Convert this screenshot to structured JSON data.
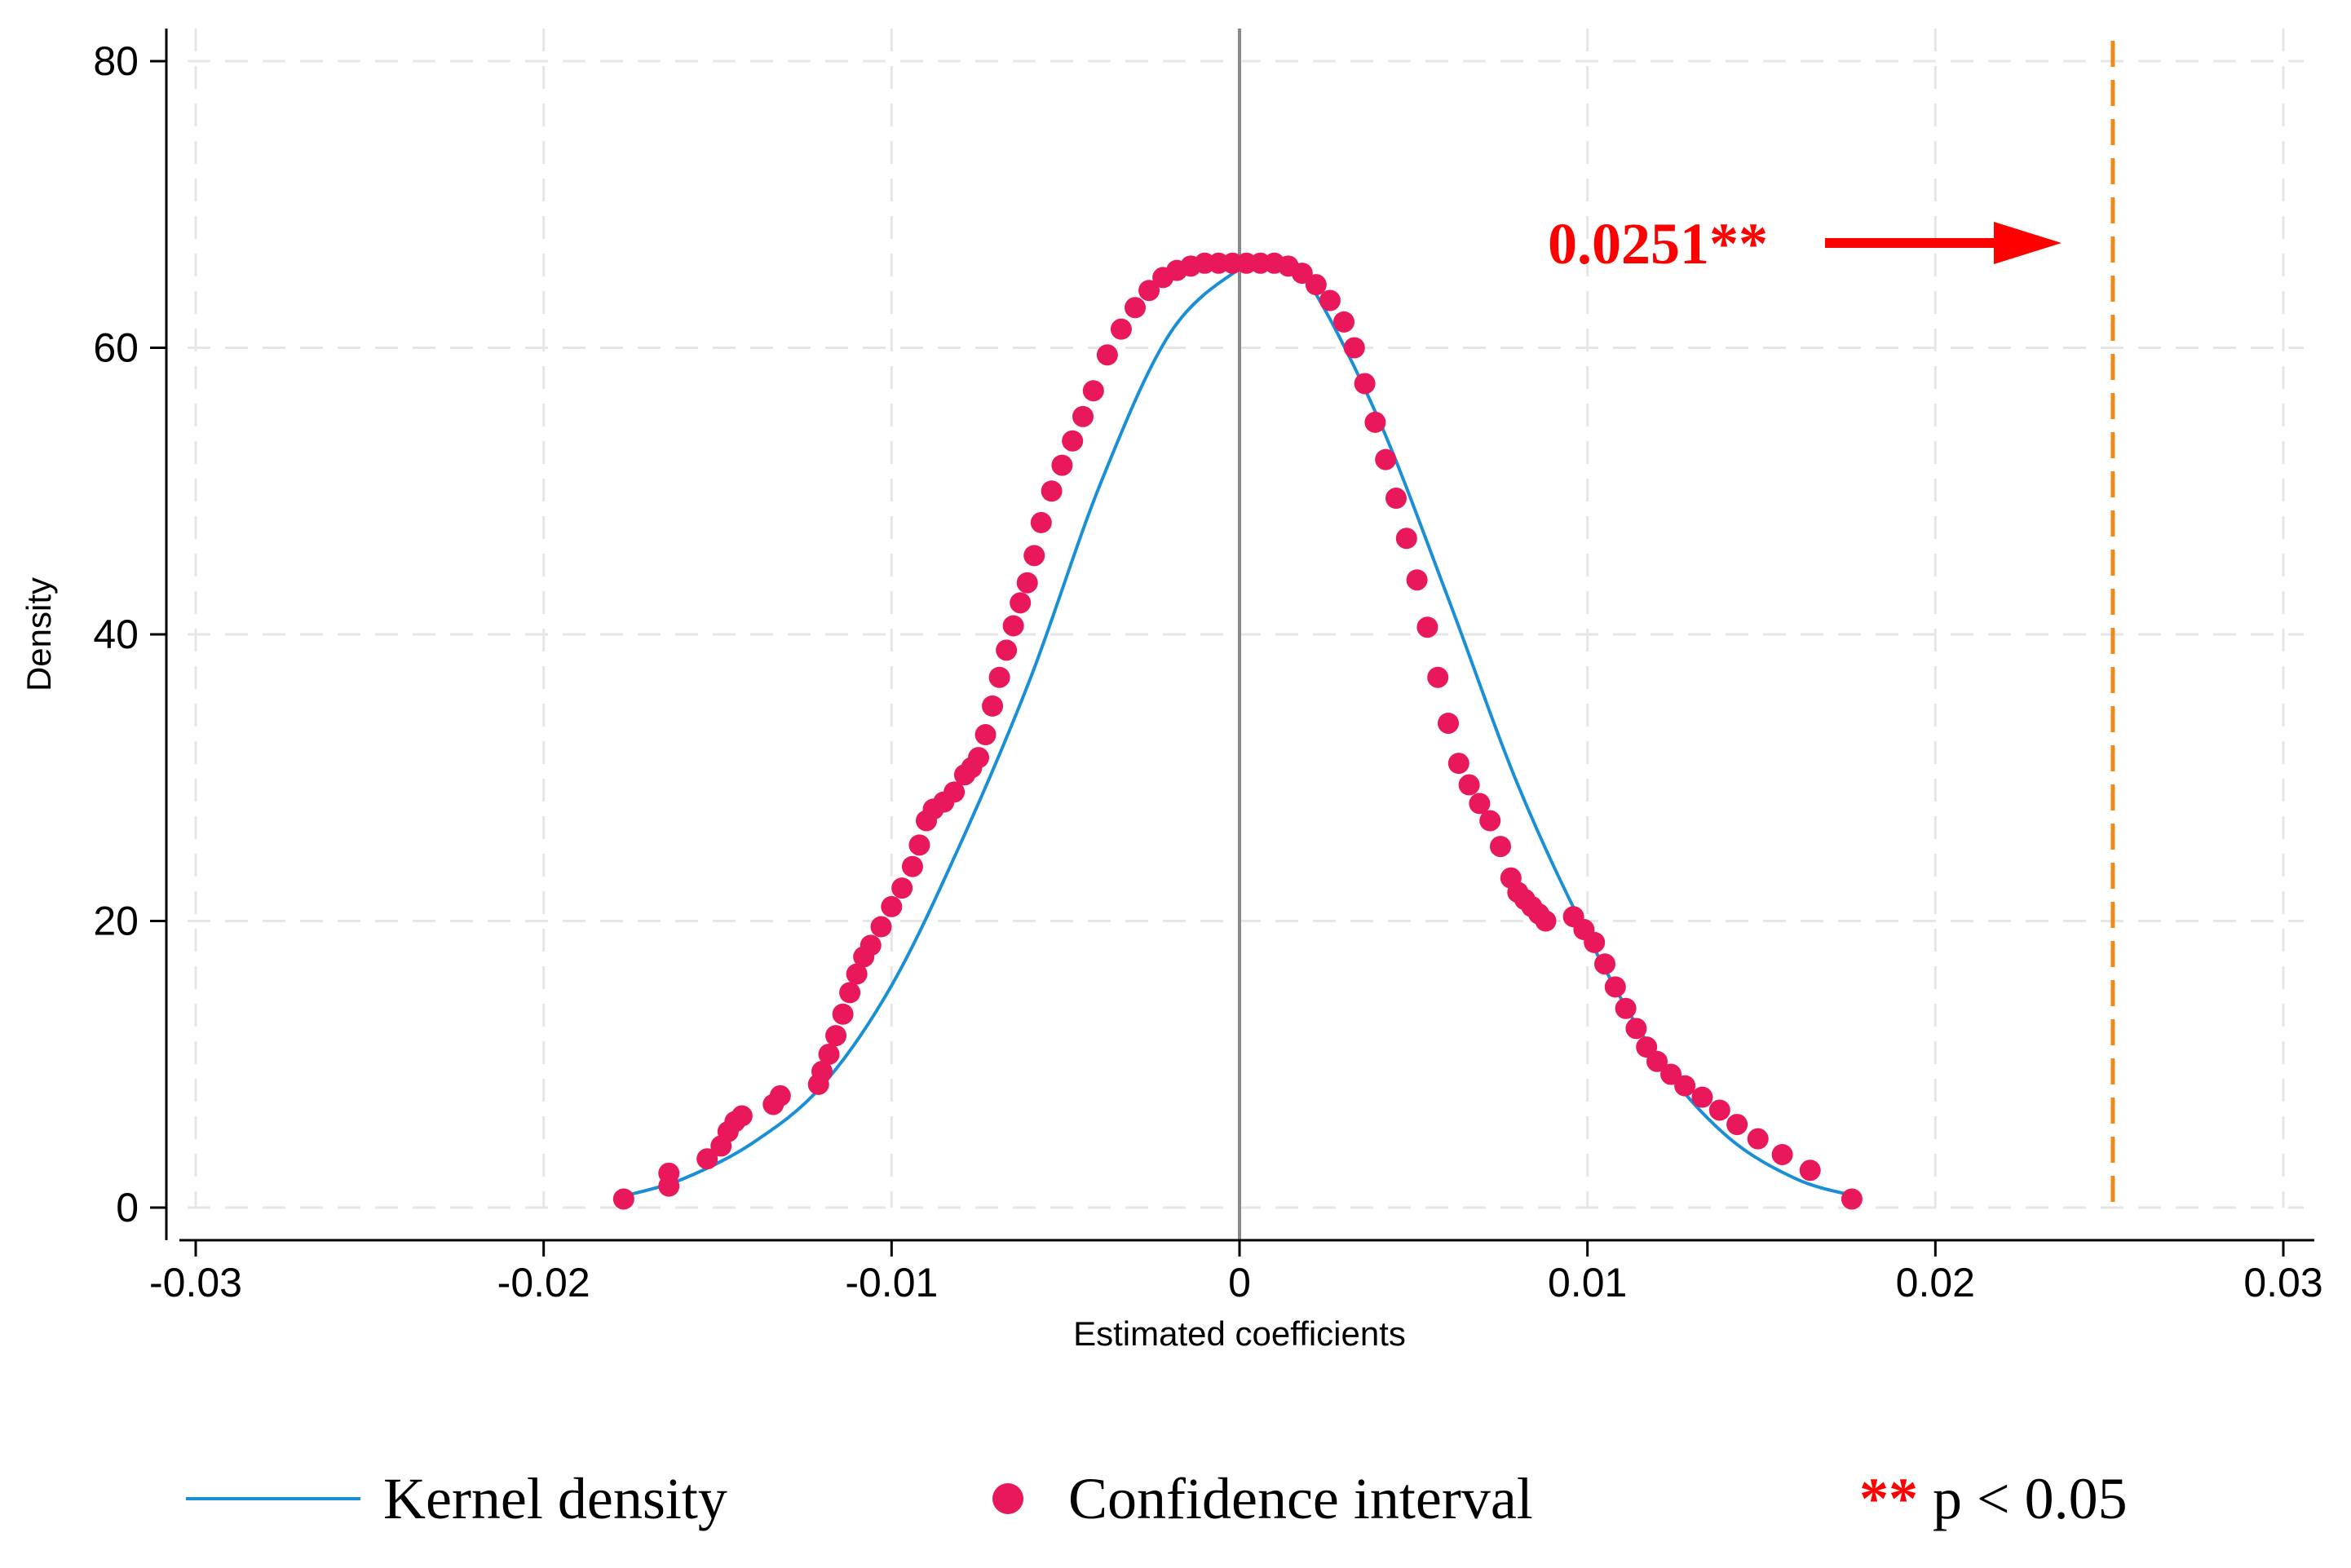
{
  "chart_data": {
    "type": "scatter",
    "title": "",
    "xlabel": "Estimated coefficients",
    "ylabel": "Density",
    "xlim": [
      -0.03,
      0.03
    ],
    "ylim": [
      0,
      80
    ],
    "xticks": [
      -0.03,
      -0.02,
      -0.01,
      0,
      0.01,
      0.02,
      0.03
    ],
    "xtick_labels": [
      "-0.03",
      "-0.02",
      "-0.01",
      "0",
      "0.01",
      "0.02",
      "0.03"
    ],
    "yticks": [
      0,
      20,
      40,
      60,
      80
    ],
    "ytick_labels": [
      "0",
      "20",
      "40",
      "60",
      "80"
    ],
    "grid": true,
    "reference_lines": {
      "zero_line_x": 0,
      "observed_coefficient_x": 0.0251
    },
    "annotation": {
      "text": "0.0251**",
      "color": "#ff0000",
      "points_to": 0.0251
    },
    "kernel_density": {
      "name": "Kernel density",
      "color": "#1a8fd6",
      "x": [
        -0.0177,
        -0.016,
        -0.014,
        -0.012,
        -0.01,
        -0.008,
        -0.006,
        -0.004,
        -0.002,
        0.0,
        0.001,
        0.002,
        0.004,
        0.006,
        0.008,
        0.01,
        0.012,
        0.014,
        0.016,
        0.0177
      ],
      "y": [
        0.8,
        2.0,
        4.5,
        8.5,
        15.5,
        25.5,
        37.0,
        50.5,
        61.0,
        65.5,
        66.0,
        64.5,
        55.0,
        42.5,
        29.5,
        19.0,
        10.5,
        5.0,
        2.0,
        0.8
      ]
    },
    "confidence_interval": {
      "name": "Confidence interval",
      "color": "#e8185a",
      "x": [
        -0.0177,
        -0.0164,
        -0.0164,
        -0.0153,
        -0.0149,
        -0.0147,
        -0.0145,
        -0.0143,
        -0.0134,
        -0.0132,
        -0.0121,
        -0.012,
        -0.0118,
        -0.0116,
        -0.0114,
        -0.0112,
        -0.011,
        -0.0108,
        -0.0106,
        -0.0103,
        -0.01,
        -0.0097,
        -0.0094,
        -0.0092,
        -0.009,
        -0.0088,
        -0.0085,
        -0.0082,
        -0.0079,
        -0.0077,
        -0.0075,
        -0.0073,
        -0.0071,
        -0.0069,
        -0.0067,
        -0.0065,
        -0.0063,
        -0.0061,
        -0.0059,
        -0.0057,
        -0.0054,
        -0.0051,
        -0.0048,
        -0.0045,
        -0.0042,
        -0.0038,
        -0.0034,
        -0.003,
        -0.0026,
        -0.0022,
        -0.0018,
        -0.0014,
        -0.001,
        -0.0006,
        -0.0002,
        0.0002,
        0.0006,
        0.001,
        0.0014,
        0.0018,
        0.0022,
        0.0026,
        0.003,
        0.0033,
        0.0036,
        0.0039,
        0.0042,
        0.0045,
        0.0048,
        0.0051,
        0.0054,
        0.0057,
        0.006,
        0.0063,
        0.0066,
        0.0069,
        0.0072,
        0.0075,
        0.0078,
        0.008,
        0.0082,
        0.0084,
        0.0086,
        0.0088,
        0.0096,
        0.0099,
        0.0102,
        0.0105,
        0.0108,
        0.0111,
        0.0114,
        0.0117,
        0.012,
        0.0124,
        0.0128,
        0.0133,
        0.0138,
        0.0143,
        0.0149,
        0.0156,
        0.0164,
        0.0176
      ],
      "y": [
        0.6,
        1.5,
        2.4,
        3.4,
        4.3,
        5.3,
        6.0,
        6.4,
        7.2,
        7.8,
        8.6,
        9.5,
        10.7,
        12.0,
        13.5,
        15.0,
        16.3,
        17.5,
        18.3,
        19.6,
        21.0,
        22.3,
        23.8,
        25.3,
        27.0,
        27.8,
        28.3,
        29.0,
        30.2,
        30.7,
        31.4,
        33.0,
        35.0,
        37.0,
        38.9,
        40.6,
        42.2,
        43.6,
        45.5,
        47.8,
        50.0,
        51.8,
        53.5,
        55.2,
        57.0,
        59.5,
        61.3,
        62.8,
        64.0,
        64.9,
        65.4,
        65.7,
        65.9,
        65.9,
        65.9,
        65.9,
        65.9,
        65.9,
        65.7,
        65.2,
        64.4,
        63.3,
        61.8,
        60.0,
        57.5,
        54.8,
        52.2,
        49.5,
        46.7,
        43.8,
        40.5,
        37.0,
        33.8,
        31.0,
        29.5,
        28.2,
        27.0,
        25.2,
        23.0,
        22.0,
        21.5,
        21.0,
        20.5,
        20.0,
        20.3,
        19.4,
        18.5,
        17.0,
        15.4,
        13.9,
        12.5,
        11.2,
        10.2,
        9.3,
        8.5,
        7.7,
        6.8,
        5.8,
        4.8,
        3.7,
        2.6,
        0.6
      ]
    },
    "legend": {
      "placement": "bottom",
      "entries": [
        {
          "label": "Kernel density",
          "marker": "line",
          "color": "#1a8fd6"
        },
        {
          "label": "Confidence interval",
          "marker": "dot",
          "color": "#e8185a"
        },
        {
          "label_stars": "**",
          "label_text": "p < 0.05",
          "marker": "text",
          "color": "#ff0000"
        }
      ]
    },
    "colors": {
      "axis": "#000000",
      "grid": "#e6e6e6",
      "zero_line": "#8a8a8a",
      "observed_line": "#f08a1c",
      "arrow": "#ff0000"
    }
  }
}
